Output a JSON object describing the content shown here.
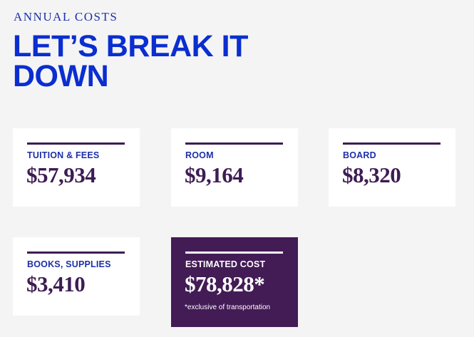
{
  "header": {
    "eyebrow": "ANNUAL COSTS",
    "title": "LET’S BREAK IT DOWN"
  },
  "costs": [
    {
      "label": "TUITION & FEES",
      "value": "$57,934"
    },
    {
      "label": "ROOM",
      "value": "$9,164"
    },
    {
      "label": "BOARD",
      "value": "$8,320"
    },
    {
      "label": "BOOKS, SUPPLIES",
      "value": "$3,410"
    }
  ],
  "total": {
    "label": "ESTIMATED COST",
    "value": "$78,828*",
    "note": "*exclusive of transportation"
  },
  "colors": {
    "title_blue": "#0a2ed0",
    "label_blue": "#1d2fa8",
    "purple": "#3d1c53",
    "total_bg": "#431b55",
    "page_bg": "#f4f4f4"
  }
}
